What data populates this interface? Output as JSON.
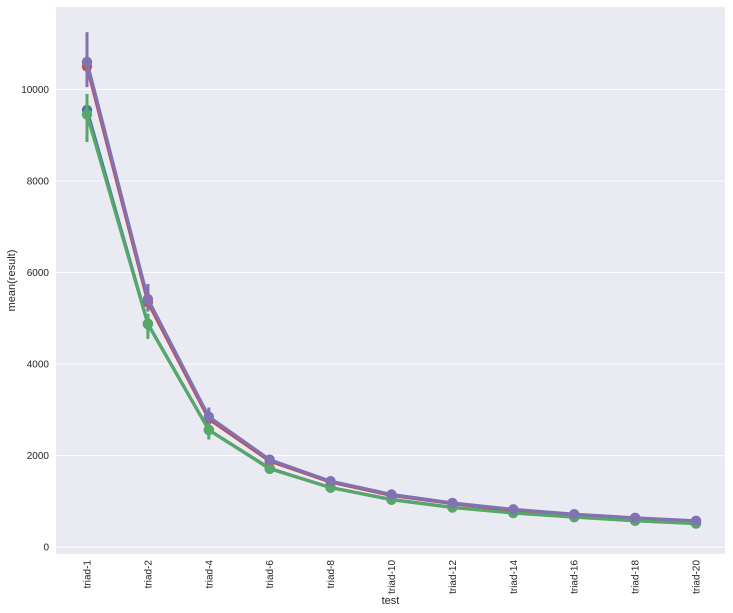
{
  "chart_data": {
    "type": "line",
    "title": "",
    "xlabel": "test",
    "ylabel": "mean(result)",
    "categories": [
      "triad-1",
      "triad-2",
      "triad-4",
      "triad-6",
      "triad-8",
      "triad-10",
      "triad-12",
      "triad-14",
      "triad-16",
      "triad-18",
      "triad-20"
    ],
    "ylim": [
      -150,
      11800
    ],
    "yticks": [
      0,
      2000,
      4000,
      6000,
      8000,
      10000
    ],
    "grid": true,
    "legend": "none",
    "series": [
      {
        "color": "#4c72b0",
        "values": [
          9550,
          4880,
          2560,
          1720,
          1300,
          1040,
          870,
          750,
          660,
          580,
          520
        ],
        "err_low": [
          9200,
          4700,
          2450,
          1650,
          1260,
          1010,
          850,
          730,
          640,
          565,
          505
        ],
        "err_high": [
          9800,
          5050,
          2700,
          1800,
          1340,
          1070,
          890,
          770,
          680,
          595,
          535
        ]
      },
      {
        "color": "#c44e52",
        "values": [
          10500,
          5350,
          2800,
          1880,
          1420,
          1130,
          950,
          810,
          710,
          630,
          560
        ],
        "err_low": [
          10200,
          5150,
          2650,
          1800,
          1380,
          1100,
          930,
          790,
          690,
          615,
          545
        ],
        "err_high": [
          10800,
          5550,
          2950,
          1960,
          1460,
          1160,
          970,
          830,
          730,
          645,
          575
        ]
      },
      {
        "color": "#55a868",
        "values": [
          9450,
          4870,
          2560,
          1710,
          1300,
          1035,
          865,
          745,
          655,
          575,
          515
        ],
        "err_low": [
          8850,
          4550,
          2350,
          1600,
          1250,
          1005,
          845,
          725,
          635,
          560,
          500
        ],
        "err_high": [
          9900,
          5100,
          2720,
          1800,
          1350,
          1065,
          885,
          765,
          675,
          590,
          530
        ]
      },
      {
        "color": "#8172b2",
        "values": [
          10600,
          5420,
          2850,
          1910,
          1440,
          1150,
          965,
          825,
          720,
          640,
          575
        ],
        "err_low": [
          10050,
          5150,
          2700,
          1830,
          1400,
          1120,
          945,
          805,
          700,
          625,
          560
        ],
        "err_high": [
          11250,
          5750,
          3050,
          1990,
          1480,
          1180,
          985,
          845,
          740,
          655,
          590
        ]
      }
    ]
  }
}
